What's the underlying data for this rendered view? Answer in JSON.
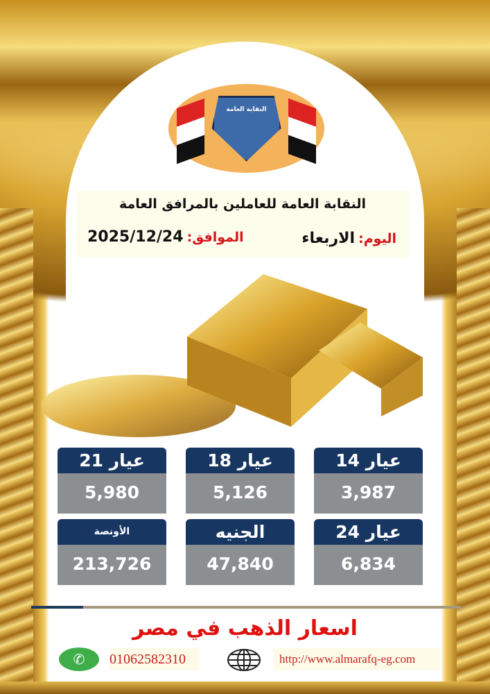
{
  "logo": {
    "text": "النقابة العامة للعاملين بالمرافق العامة"
  },
  "header": {
    "title": "النقابة العامة للعاملين بالمرافق العامة",
    "day_label": "اليوم:",
    "day_value": "الاربعاء",
    "date_label": "الموافق:",
    "date_value": "2025/12/24"
  },
  "prices": [
    {
      "label": "عيار 21",
      "value": "5,980"
    },
    {
      "label": "عيار 18",
      "value": "5,126"
    },
    {
      "label": "عيار 14",
      "value": "3,987"
    },
    {
      "label": "الأونصة",
      "value": "213,726"
    },
    {
      "label": "الجنيه",
      "value": "47,840"
    },
    {
      "label": "عيار 24",
      "value": "6,834"
    }
  ],
  "footer": {
    "tagline": "اسعار الذهب في مصر",
    "phone": "01062582310",
    "url": "http://www.almarafq-eg.com"
  },
  "icons": {
    "phone": "whatsapp-icon",
    "web": "globe-icon"
  },
  "colors": {
    "header_bg": "#183662",
    "value_bg": "#8c8f92",
    "accent_red": "#e01010"
  }
}
